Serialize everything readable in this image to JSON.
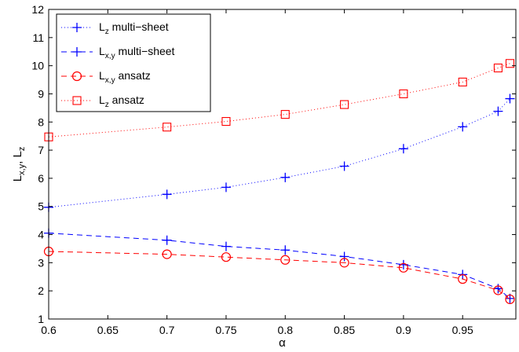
{
  "chart_data": {
    "type": "line",
    "xlabel": "α",
    "ylabel": {
      "parts": [
        {
          "text": "L",
          "sub": false
        },
        {
          "text": "x,y",
          "sub": true
        },
        {
          "text": ", L",
          "sub": false
        },
        {
          "text": "z",
          "sub": true
        }
      ]
    },
    "xlim": [
      0.6,
      0.995
    ],
    "ylim": [
      1,
      12
    ],
    "xticks": [
      0.6,
      0.65,
      0.7,
      0.75,
      0.8,
      0.85,
      0.9,
      0.95
    ],
    "xtick_labels": [
      "0.6",
      "0.65",
      "0.7",
      "0.75",
      "0.8",
      "0.85",
      "0.9",
      "0.95"
    ],
    "yticks": [
      1,
      2,
      3,
      4,
      5,
      6,
      7,
      8,
      9,
      10,
      11,
      12
    ],
    "ytick_labels": [
      "1",
      "2",
      "3",
      "4",
      "5",
      "6",
      "7",
      "8",
      "9",
      "10",
      "11",
      "12"
    ],
    "grid": false,
    "legend_position": "top-left",
    "x": [
      0.6,
      0.7,
      0.75,
      0.8,
      0.85,
      0.9,
      0.95,
      0.98,
      0.99
    ],
    "series": [
      {
        "key": "lz-multi",
        "name_main": "L",
        "name_sub": "z",
        "name_rest": " multi−sheet",
        "color": "#0000ff",
        "dash": "1,3",
        "marker": "plus",
        "values": [
          4.97,
          5.43,
          5.68,
          6.03,
          6.43,
          7.05,
          7.83,
          8.38,
          8.83
        ]
      },
      {
        "key": "lxy-multi",
        "name_main": "L",
        "name_sub": "x,y",
        "name_rest": " multi−sheet",
        "color": "#0000ff",
        "dash": "7,5",
        "marker": "plus",
        "values": [
          4.05,
          3.8,
          3.58,
          3.45,
          3.22,
          2.93,
          2.58,
          2.08,
          1.73
        ]
      },
      {
        "key": "lxy-ansatz",
        "name_main": "L",
        "name_sub": "x,y",
        "name_rest": " ansatz",
        "color": "#ff0000",
        "dash": "7,5",
        "marker": "circle",
        "values": [
          3.4,
          3.3,
          3.2,
          3.1,
          3.0,
          2.82,
          2.42,
          2.02,
          1.7
        ]
      },
      {
        "key": "lz-ansatz",
        "name_main": "L",
        "name_sub": "z",
        "name_rest": " ansatz",
        "color": "#ff0000",
        "dash": "1,3",
        "marker": "square",
        "values": [
          7.47,
          7.82,
          8.02,
          8.27,
          8.62,
          9.0,
          9.42,
          9.92,
          10.08
        ]
      }
    ]
  }
}
